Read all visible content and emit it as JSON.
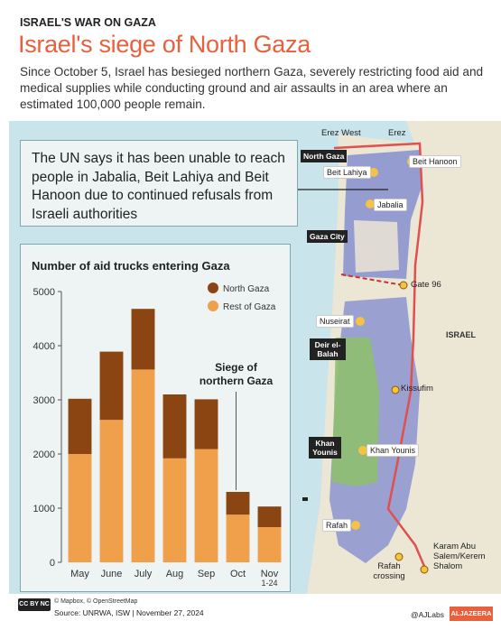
{
  "header": {
    "kicker": "ISRAEL'S WAR ON GAZA",
    "title": "Israel's siege of North Gaza",
    "subtitle": "Since October 5, Israel has besieged northern Gaza, severely restricting food aid and medical supplies while conducting ground and air assaults in an area where an estimated 100,000 people remain."
  },
  "callout": {
    "text": "The UN says it has been unable to reach people in Jabalia, Beit Lahiya and Beit Hanoon due to continued refusals from Israeli authorities"
  },
  "map": {
    "region_labels": {
      "north_gaza": "North Gaza",
      "gaza_city": "Gaza City",
      "deir_el_balah": "Deir el-Balah",
      "khan_younis_region": "Khan Younis",
      "rafah_region": "Rafah",
      "israel": "ISRAEL"
    },
    "places": {
      "erez_west": "Erez West",
      "erez": "Erez",
      "beit_hanoon": "Beit Hanoon",
      "beit_lahiya": "Beit Lahiya",
      "jabalia": "Jabalia",
      "gate_96": "Gate 96",
      "nuseirat": "Nuseirat",
      "kissufim": "Kissufim",
      "khan_younis": "Khan Younis",
      "rafah": "Rafah",
      "rafah_crossing": "Rafah crossing",
      "karam_abu_salem": "Karam Abu Salem/Kerem Shalom"
    },
    "colors": {
      "sea": "#c9e4ea",
      "land": "#ece6d5",
      "siege_zone": "#8c93cf",
      "central_zone": "#7b9fd1",
      "green_zone": "#8fbf6f",
      "border": "#e05050",
      "marker": "#f5c242"
    }
  },
  "chart_data": {
    "type": "bar",
    "stacked": true,
    "title": "Number of aid trucks entering Gaza",
    "categories": [
      "May",
      "June",
      "July",
      "Aug",
      "Sep",
      "Oct",
      "Nov 1-24"
    ],
    "series": [
      {
        "name": "Rest of Gaza",
        "color": "#f0a04b",
        "values": [
          2000,
          2630,
          3560,
          1920,
          2090,
          880,
          650
        ]
      },
      {
        "name": "North Gaza",
        "color": "#8b4513",
        "values": [
          1020,
          1260,
          1120,
          1180,
          920,
          420,
          380
        ]
      }
    ],
    "ylim": [
      0,
      5000
    ],
    "yticks": [
      "0",
      "1000",
      "2000",
      "3000",
      "4000",
      "5000"
    ],
    "annotation": "Siege of northern Gaza",
    "legend_placement": "top-right"
  },
  "footer": {
    "credits": "© Mapbox, © OpenStreetMap",
    "source": "Source:  UNRWA, ISW  |  November 27, 2024",
    "cc_badge": "CC BY NC ND",
    "handle": "@AJLabs",
    "logo": "ALJAZEERA"
  }
}
